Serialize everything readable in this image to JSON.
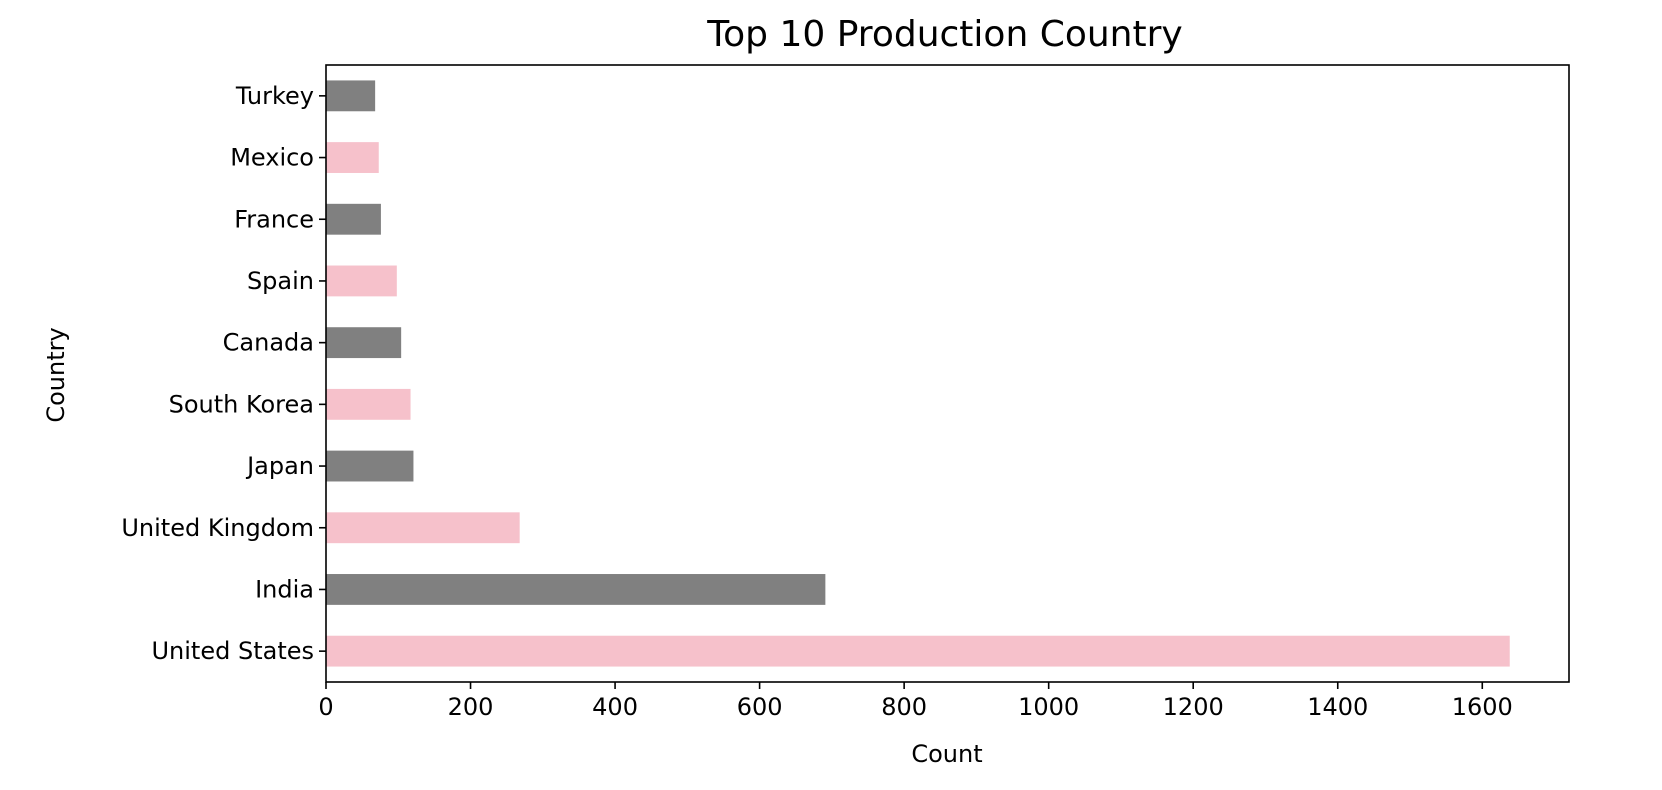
{
  "chart_data": {
    "type": "bar",
    "orientation": "horizontal",
    "title": "Top 10 Production Country",
    "xlabel": "Count",
    "ylabel": "Country",
    "categories": [
      "United States",
      "India",
      "United Kingdom",
      "Japan",
      "South Korea",
      "Canada",
      "Spain",
      "France",
      "Mexico",
      "Turkey"
    ],
    "values": [
      1638,
      691,
      268,
      121,
      117,
      104,
      98,
      76,
      73,
      68
    ],
    "xlim": [
      0,
      1720
    ],
    "xticks": [
      "0",
      "200",
      "400",
      "600",
      "800",
      "1000",
      "1200",
      "1400",
      "1600"
    ],
    "grid": false,
    "legend": "none",
    "bar_colors": [
      "#f6c1cb",
      "#808080"
    ]
  }
}
